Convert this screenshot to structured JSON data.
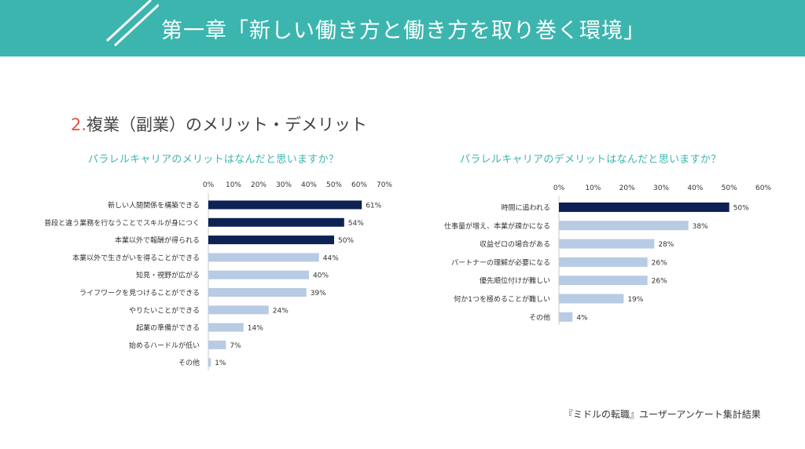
{
  "header": {
    "title": "第一章「新しい働き方と働き方を取り巻く環境」",
    "banner_color": "#3cb5ae"
  },
  "section": {
    "number": "2.",
    "title": "複業（副業）のメリット・デメリット",
    "number_color": "#e5533d"
  },
  "source_note": "『ミドルの転職』ユーザーアンケート集計結果",
  "colors": {
    "highlight": "#0e2154",
    "normal": "#b8cbe4",
    "title_accent": "#3cb5ae"
  },
  "chart_data": [
    {
      "type": "bar",
      "orientation": "horizontal",
      "title": "パラレルキャリアのメリットはなんだと思いますか？",
      "categories": [
        "新しい人間関係を構築できる",
        "普段と違う業務を行なうことでスキルが身につく",
        "本業以外で報酬が得られる",
        "本業以外で生きがいを得ることができる",
        "知見・視野が広がる",
        "ライフワークを見つけることができる",
        "やりたいことができる",
        "起業の準備ができる",
        "始めるハードルが低い",
        "その他"
      ],
      "values": [
        61,
        54,
        50,
        44,
        40,
        39,
        24,
        14,
        7,
        1
      ],
      "value_labels": [
        "61%",
        "54%",
        "50%",
        "44%",
        "40%",
        "39%",
        "24%",
        "14%",
        "7%",
        "1%"
      ],
      "highlighted_count": 3,
      "xlim": [
        0,
        70
      ],
      "xticks": [
        "0%",
        "10%",
        "20%",
        "30%",
        "40%",
        "50%",
        "60%",
        "70%"
      ],
      "grid": false,
      "legend": "none"
    },
    {
      "type": "bar",
      "orientation": "horizontal",
      "title": "パラレルキャリアのデメリットはなんだと思いますか？",
      "categories": [
        "時間に追われる",
        "仕事量が増え、本業が疎かになる",
        "収益ゼロの場合がある",
        "パートナーの理解が必要になる",
        "優先順位付けが難しい",
        "何か1つを極めることが難しい",
        "その他"
      ],
      "values": [
        50,
        38,
        28,
        26,
        26,
        19,
        4
      ],
      "value_labels": [
        "50%",
        "38%",
        "28%",
        "26%",
        "26%",
        "19%",
        "4%"
      ],
      "highlighted_count": 1,
      "xlim": [
        0,
        60
      ],
      "xticks": [
        "0%",
        "10%",
        "20%",
        "30%",
        "40%",
        "50%",
        "60%"
      ],
      "grid": false,
      "legend": "none"
    }
  ]
}
